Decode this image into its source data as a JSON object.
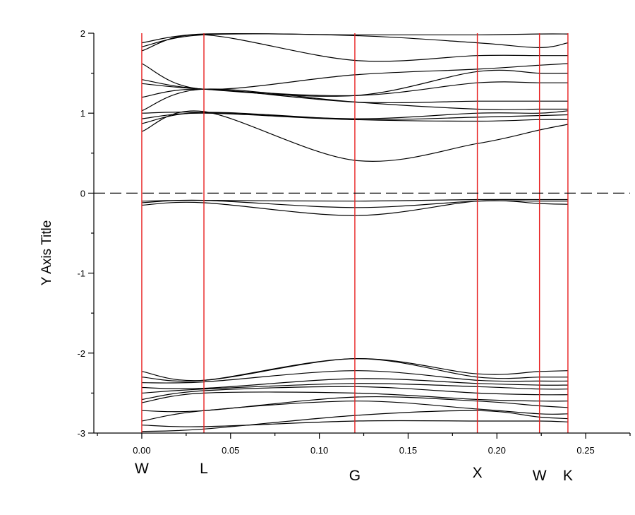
{
  "chart_data": {
    "type": "line",
    "title": "",
    "xlabel": "",
    "ylabel": "Y Axis Title",
    "xlim": [
      -0.027,
      0.275
    ],
    "ylim": [
      -3,
      2
    ],
    "x_ticks": [
      0.0,
      0.05,
      0.1,
      0.15,
      0.2,
      0.25
    ],
    "x_tick_labels": [
      "0.00",
      "0.05",
      "0.10",
      "0.15",
      "0.20",
      "0.25"
    ],
    "y_ticks": [
      -3,
      -2,
      -1,
      0,
      1,
      2
    ],
    "y_tick_labels": [
      "-3",
      "-2",
      "-1",
      "0",
      "1",
      "2"
    ],
    "grid": false,
    "fermi_level": 0,
    "high_symmetry_points": [
      {
        "label": "W",
        "x": 0.0
      },
      {
        "label": "L",
        "x": 0.035
      },
      {
        "label": "G",
        "x": 0.12
      },
      {
        "label": "X",
        "x": 0.189
      },
      {
        "label": "W",
        "x": 0.224
      },
      {
        "label": "K",
        "x": 0.24
      }
    ],
    "kx": [
      0.0,
      0.035,
      0.12,
      0.189,
      0.224,
      0.24
    ],
    "bands": [
      {
        "name": "",
        "values": [
          -2.98,
          -2.95,
          -2.78,
          -2.72,
          -2.8,
          -2.82
        ]
      },
      {
        "name": "",
        "values": [
          -2.9,
          -2.92,
          -2.85,
          -2.85,
          -2.85,
          -2.86
        ]
      },
      {
        "name": "",
        "values": [
          -2.85,
          -2.72,
          -2.6,
          -2.7,
          -2.76,
          -2.76
        ]
      },
      {
        "name": "",
        "values": [
          -2.72,
          -2.72,
          -2.55,
          -2.6,
          -2.66,
          -2.68
        ]
      },
      {
        "name": "",
        "values": [
          -2.62,
          -2.5,
          -2.5,
          -2.58,
          -2.6,
          -2.6
        ]
      },
      {
        "name": "",
        "values": [
          -2.58,
          -2.47,
          -2.42,
          -2.5,
          -2.52,
          -2.52
        ]
      },
      {
        "name": "",
        "values": [
          -2.5,
          -2.45,
          -2.38,
          -2.42,
          -2.45,
          -2.45
        ]
      },
      {
        "name": "",
        "values": [
          -2.43,
          -2.44,
          -2.32,
          -2.38,
          -2.4,
          -2.4
        ]
      },
      {
        "name": "",
        "values": [
          -2.37,
          -2.36,
          -2.22,
          -2.34,
          -2.35,
          -2.35
        ]
      },
      {
        "name": "",
        "values": [
          -2.3,
          -2.34,
          -2.07,
          -2.3,
          -2.3,
          -2.3
        ]
      },
      {
        "name": "",
        "values": [
          -2.23,
          -2.34,
          -2.07,
          -2.26,
          -2.23,
          -2.22
        ]
      },
      {
        "name": "",
        "values": [
          -0.15,
          -0.12,
          -0.28,
          -0.1,
          -0.13,
          -0.14
        ]
      },
      {
        "name": "",
        "values": [
          -0.12,
          -0.09,
          -0.18,
          -0.1,
          -0.1,
          -0.1
        ]
      },
      {
        "name": "",
        "values": [
          -0.1,
          -0.09,
          -0.1,
          -0.08,
          -0.08,
          -0.08
        ]
      },
      {
        "name": "",
        "values": [
          0.77,
          1.02,
          0.41,
          0.62,
          0.79,
          0.86
        ]
      },
      {
        "name": "",
        "values": [
          0.87,
          1.01,
          0.92,
          0.9,
          0.92,
          0.92
        ]
      },
      {
        "name": "",
        "values": [
          0.93,
          1.0,
          0.92,
          0.95,
          0.97,
          0.98
        ]
      },
      {
        "name": "",
        "values": [
          1.0,
          1.01,
          0.93,
          1.0,
          1.0,
          1.03
        ]
      },
      {
        "name": "",
        "values": [
          1.03,
          1.3,
          1.14,
          1.05,
          1.05,
          1.05
        ]
      },
      {
        "name": "",
        "values": [
          1.2,
          1.3,
          1.14,
          1.15,
          1.15,
          1.15
        ]
      },
      {
        "name": "",
        "values": [
          1.37,
          1.3,
          1.22,
          1.38,
          1.38,
          1.38
        ]
      },
      {
        "name": "",
        "values": [
          1.42,
          1.3,
          1.22,
          1.52,
          1.5,
          1.5
        ]
      },
      {
        "name": "",
        "values": [
          1.62,
          1.3,
          1.48,
          1.55,
          1.6,
          1.62
        ]
      },
      {
        "name": "",
        "values": [
          1.78,
          1.98,
          1.66,
          1.72,
          1.72,
          1.72
        ]
      },
      {
        "name": "",
        "values": [
          1.83,
          1.98,
          1.97,
          1.88,
          1.82,
          1.88
        ]
      },
      {
        "name": "",
        "values": [
          1.88,
          1.99,
          1.98,
          1.98,
          1.99,
          1.99
        ]
      }
    ]
  }
}
